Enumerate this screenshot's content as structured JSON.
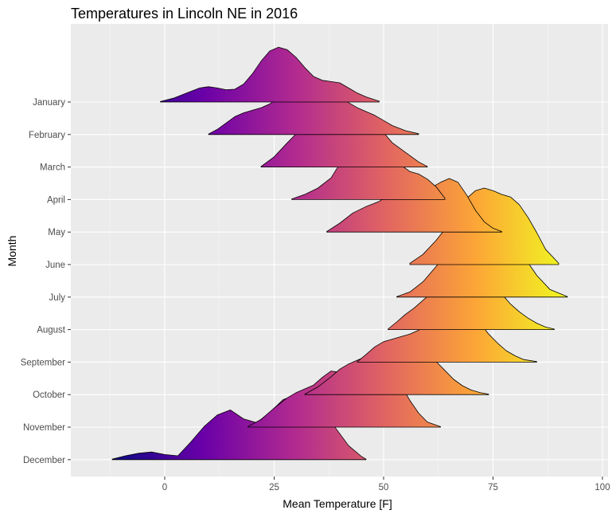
{
  "chart_data": {
    "type": "ridgeline",
    "title": "Temperatures in Lincoln NE in 2016",
    "xlabel": "Mean Temperature [F]",
    "ylabel": "Month",
    "xlim": [
      -21,
      101
    ],
    "xticks": [
      0,
      25,
      50,
      75,
      100
    ],
    "grid": true,
    "colormap": "plasma",
    "fill_scale_limits": [
      -12,
      92
    ],
    "fill_scale_colors": [
      "#0d0887",
      "#6a00a8",
      "#b12a90",
      "#e16462",
      "#fca636",
      "#f0f921"
    ],
    "panel_background": "#ebebeb",
    "categories": [
      "January",
      "February",
      "March",
      "April",
      "May",
      "June",
      "July",
      "August",
      "September",
      "October",
      "November",
      "December"
    ],
    "series": [
      {
        "name": "January",
        "x": [
          -1,
          2,
          5,
          8,
          10,
          12,
          14,
          16,
          18,
          20,
          22,
          24,
          26,
          28,
          30,
          32,
          34,
          36,
          38,
          40,
          42,
          44,
          46,
          49
        ],
        "y": [
          0.02,
          0.15,
          0.35,
          0.55,
          0.6,
          0.55,
          0.48,
          0.5,
          0.7,
          1.1,
          1.6,
          2.0,
          2.15,
          2.05,
          1.75,
          1.35,
          1.0,
          0.85,
          0.8,
          0.75,
          0.55,
          0.35,
          0.2,
          0.03
        ]
      },
      {
        "name": "February",
        "x": [
          10,
          12,
          14,
          16,
          18,
          20,
          22,
          24,
          26,
          28,
          30,
          32,
          34,
          36,
          38,
          40,
          42,
          44,
          46,
          48,
          50,
          52,
          55,
          58
        ],
        "y": [
          0.02,
          0.2,
          0.45,
          0.7,
          0.85,
          0.95,
          1.05,
          1.2,
          1.45,
          1.7,
          1.95,
          2.1,
          2.15,
          2.05,
          1.8,
          1.5,
          1.25,
          1.05,
          0.9,
          0.75,
          0.55,
          0.35,
          0.15,
          0.03
        ]
      },
      {
        "name": "March",
        "x": [
          22,
          25,
          28,
          30,
          32,
          34,
          36,
          38,
          40,
          42,
          44,
          46,
          48,
          50,
          52,
          54,
          56,
          58,
          60
        ],
        "y": [
          0.02,
          0.4,
          0.95,
          1.3,
          1.55,
          1.75,
          1.85,
          1.95,
          2.1,
          2.2,
          2.2,
          2.05,
          1.75,
          1.35,
          0.95,
          0.7,
          0.45,
          0.2,
          0.02
        ]
      },
      {
        "name": "April",
        "x": [
          29,
          32,
          35,
          38,
          40,
          42,
          44,
          46,
          48,
          50,
          52,
          54,
          56,
          58,
          60,
          62,
          64
        ],
        "y": [
          0.02,
          0.2,
          0.45,
          0.85,
          1.4,
          2.0,
          2.4,
          2.55,
          2.45,
          2.15,
          1.75,
          1.35,
          1.1,
          1.0,
          0.8,
          0.5,
          0.05
        ]
      },
      {
        "name": "May",
        "x": [
          37,
          40,
          43,
          46,
          49,
          51,
          53,
          55,
          57,
          59,
          61,
          63,
          65,
          67,
          69,
          71,
          73,
          75,
          77
        ],
        "y": [
          0.02,
          0.35,
          0.75,
          1.0,
          1.2,
          1.45,
          1.75,
          1.95,
          1.95,
          1.8,
          1.75,
          1.95,
          2.1,
          1.95,
          1.45,
          0.85,
          0.4,
          0.15,
          0.02
        ]
      },
      {
        "name": "June",
        "x": [
          56,
          59,
          62,
          65,
          67,
          69,
          71,
          73,
          75,
          77,
          79,
          81,
          83,
          85,
          87,
          90
        ],
        "y": [
          0.05,
          0.4,
          0.95,
          1.6,
          2.15,
          2.6,
          2.9,
          3.0,
          2.9,
          2.75,
          2.65,
          2.35,
          1.85,
          1.25,
          0.6,
          0.05
        ]
      },
      {
        "name": "July",
        "x": [
          53,
          56,
          59,
          62,
          65,
          67,
          69,
          71,
          73,
          75,
          77,
          79,
          81,
          83,
          85,
          88,
          92
        ],
        "y": [
          0.02,
          0.2,
          0.6,
          1.2,
          1.85,
          2.3,
          2.65,
          2.95,
          3.1,
          3.05,
          2.8,
          2.45,
          1.9,
          1.35,
          0.85,
          0.3,
          0.02
        ]
      },
      {
        "name": "August",
        "x": [
          51,
          53,
          55,
          57,
          59,
          61,
          63,
          65,
          67,
          69,
          71,
          73,
          75,
          77,
          79,
          81,
          83,
          85,
          87,
          89
        ],
        "y": [
          0.02,
          0.3,
          0.6,
          0.85,
          1.15,
          1.45,
          1.8,
          2.3,
          2.75,
          2.8,
          2.65,
          2.3,
          1.85,
          1.4,
          1.0,
          0.7,
          0.45,
          0.25,
          0.1,
          0.02
        ]
      },
      {
        "name": "September",
        "x": [
          44,
          46,
          48,
          50,
          52,
          54,
          56,
          58,
          60,
          62,
          64,
          66,
          68,
          70,
          72,
          74,
          76,
          78,
          80,
          82,
          85
        ],
        "y": [
          0.02,
          0.3,
          0.6,
          0.8,
          0.9,
          1.0,
          1.1,
          1.25,
          1.55,
          1.95,
          2.3,
          2.45,
          2.35,
          2.0,
          1.55,
          1.1,
          0.75,
          0.45,
          0.25,
          0.1,
          0.02
        ]
      },
      {
        "name": "October",
        "x": [
          32,
          35,
          38,
          40,
          42,
          44,
          46,
          48,
          50,
          52,
          54,
          56,
          58,
          60,
          62,
          64,
          66,
          68,
          70,
          72,
          74
        ],
        "y": [
          0.02,
          0.3,
          0.7,
          1.0,
          1.2,
          1.35,
          1.5,
          1.7,
          1.95,
          2.05,
          2.05,
          2.0,
          1.85,
          1.6,
          1.3,
          0.95,
          0.6,
          0.35,
          0.18,
          0.08,
          0.02
        ]
      },
      {
        "name": "November",
        "x": [
          19,
          22,
          25,
          28,
          30,
          32,
          34,
          36,
          38,
          40,
          42,
          44,
          46,
          48,
          50,
          52,
          54,
          56,
          58,
          60,
          63
        ],
        "y": [
          0.02,
          0.3,
          0.75,
          1.15,
          1.35,
          1.5,
          1.65,
          1.95,
          2.2,
          2.15,
          1.8,
          1.45,
          1.3,
          1.5,
          1.95,
          2.05,
          1.65,
          1.05,
          0.55,
          0.2,
          0.02
        ]
      },
      {
        "name": "December",
        "x": [
          -12,
          -9,
          -6,
          -3,
          0,
          3,
          6,
          9,
          12,
          15,
          18,
          21,
          24,
          27,
          30,
          33,
          36,
          39,
          42,
          45,
          46
        ],
        "y": [
          0.02,
          0.15,
          0.25,
          0.3,
          0.2,
          0.15,
          0.7,
          1.3,
          1.75,
          1.95,
          1.6,
          1.45,
          1.85,
          2.35,
          2.55,
          2.45,
          1.95,
          1.25,
          0.55,
          0.12,
          0.02
        ]
      }
    ]
  }
}
